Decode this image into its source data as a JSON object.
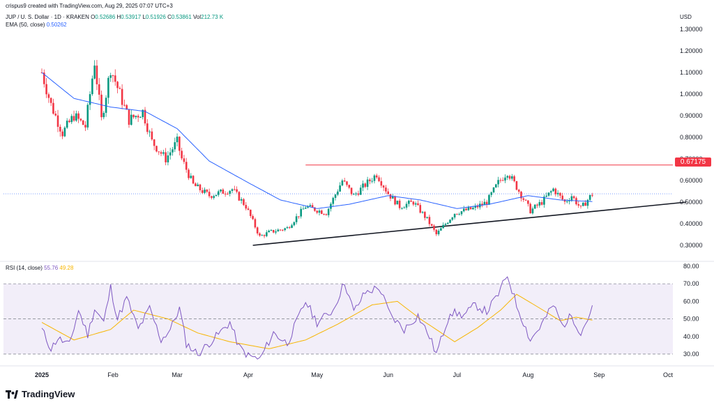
{
  "header": {
    "credit": "crispus9 created with TradingView.com, Aug 29, 2025 07:07 UTC+3",
    "symbol": "JUP / U. S. Dollar · 1D · KRAKEN",
    "ohlc": {
      "o_label": "O",
      "o": "0.52686",
      "h_label": "H",
      "h": "0.53917",
      "l_label": "L",
      "l": "0.51926",
      "c_label": "C",
      "c": "0.53861",
      "vol_label": "Vol",
      "vol": "212.73 K"
    },
    "ema_label": "EMA (50, close)",
    "ema_value": "0.50262",
    "currency": "USD"
  },
  "rsi_header": {
    "label": "RSI (14, close)",
    "value": "55.76",
    "ma": "49.28"
  },
  "logo_text": "TradingView",
  "colors": {
    "up": "#089981",
    "down": "#f23645",
    "ema": "#2962ff",
    "rsi": "#7e57c2",
    "rsi_ma": "#f7b500",
    "resistance": "#f23645",
    "support": "#131722"
  },
  "chart_data": {
    "type": "candlestick",
    "price_axis": {
      "ticks": [
        "1.30000",
        "1.20000",
        "1.10000",
        "1.00000",
        "0.90000",
        "0.80000",
        "0.70000",
        "0.60000",
        "0.50000",
        "0.40000",
        "0.30000"
      ],
      "range": [
        0.26,
        1.35
      ]
    },
    "rsi_axis": {
      "ticks": [
        "80.00",
        "70.00",
        "60.00",
        "50.00",
        "40.00",
        "30.00"
      ],
      "range": [
        25,
        82
      ],
      "bands": [
        30,
        70
      ],
      "mid": 50
    },
    "x_axis": {
      "labels": [
        "2025",
        "Feb",
        "Mar",
        "Apr",
        "May",
        "Jun",
        "Jul",
        "Aug",
        "Sep",
        "Oct"
      ]
    },
    "resistance": {
      "price": 0.67175,
      "label": "0.67175",
      "from": "2025-04-26"
    },
    "support": {
      "from": {
        "date": "2025-04-03",
        "price": 0.3
      },
      "to": {
        "date": "2025-10-09",
        "price": 0.5
      }
    },
    "last_price_line": 0.53861,
    "anchors": [
      {
        "d": "2025-01-01",
        "c": 1.1
      },
      {
        "d": "2025-01-05",
        "c": 0.95
      },
      {
        "d": "2025-01-10",
        "c": 0.82
      },
      {
        "d": "2025-01-15",
        "c": 0.9
      },
      {
        "d": "2025-01-20",
        "c": 0.85
      },
      {
        "d": "2025-01-24",
        "c": 1.15
      },
      {
        "d": "2025-01-27",
        "c": 0.88
      },
      {
        "d": "2025-01-31",
        "c": 1.12
      },
      {
        "d": "2025-02-04",
        "c": 1.0
      },
      {
        "d": "2025-02-08",
        "c": 0.88
      },
      {
        "d": "2025-02-14",
        "c": 0.92
      },
      {
        "d": "2025-02-18",
        "c": 0.78
      },
      {
        "d": "2025-02-24",
        "c": 0.7
      },
      {
        "d": "2025-03-01",
        "c": 0.78
      },
      {
        "d": "2025-03-03",
        "c": 0.7
      },
      {
        "d": "2025-03-08",
        "c": 0.58
      },
      {
        "d": "2025-03-15",
        "c": 0.53
      },
      {
        "d": "2025-03-25",
        "c": 0.56
      },
      {
        "d": "2025-03-31",
        "c": 0.48
      },
      {
        "d": "2025-04-06",
        "c": 0.34
      },
      {
        "d": "2025-04-10",
        "c": 0.36
      },
      {
        "d": "2025-04-18",
        "c": 0.38
      },
      {
        "d": "2025-04-26",
        "c": 0.48
      },
      {
        "d": "2025-05-05",
        "c": 0.45
      },
      {
        "d": "2025-05-12",
        "c": 0.6
      },
      {
        "d": "2025-05-17",
        "c": 0.53
      },
      {
        "d": "2025-05-22",
        "c": 0.58
      },
      {
        "d": "2025-05-27",
        "c": 0.63
      },
      {
        "d": "2025-06-01",
        "c": 0.54
      },
      {
        "d": "2025-06-06",
        "c": 0.48
      },
      {
        "d": "2025-06-12",
        "c": 0.5
      },
      {
        "d": "2025-06-18",
        "c": 0.42
      },
      {
        "d": "2025-06-22",
        "c": 0.35
      },
      {
        "d": "2025-06-30",
        "c": 0.45
      },
      {
        "d": "2025-07-08",
        "c": 0.47
      },
      {
        "d": "2025-07-14",
        "c": 0.5
      },
      {
        "d": "2025-07-19",
        "c": 0.59
      },
      {
        "d": "2025-07-23",
        "c": 0.64
      },
      {
        "d": "2025-07-27",
        "c": 0.57
      },
      {
        "d": "2025-08-02",
        "c": 0.46
      },
      {
        "d": "2025-08-07",
        "c": 0.5
      },
      {
        "d": "2025-08-12",
        "c": 0.56
      },
      {
        "d": "2025-08-17",
        "c": 0.5
      },
      {
        "d": "2025-08-20",
        "c": 0.53
      },
      {
        "d": "2025-08-24",
        "c": 0.47
      },
      {
        "d": "2025-08-29",
        "c": 0.53861
      }
    ],
    "ema_anchors": [
      {
        "d": "2025-01-01",
        "v": 1.1
      },
      {
        "d": "2025-01-15",
        "v": 0.98
      },
      {
        "d": "2025-01-31",
        "v": 0.94
      },
      {
        "d": "2025-02-15",
        "v": 0.92
      },
      {
        "d": "2025-03-01",
        "v": 0.84
      },
      {
        "d": "2025-03-15",
        "v": 0.69
      },
      {
        "d": "2025-04-01",
        "v": 0.59
      },
      {
        "d": "2025-04-15",
        "v": 0.51
      },
      {
        "d": "2025-05-01",
        "v": 0.47
      },
      {
        "d": "2025-05-15",
        "v": 0.49
      },
      {
        "d": "2025-06-01",
        "v": 0.53
      },
      {
        "d": "2025-06-15",
        "v": 0.51
      },
      {
        "d": "2025-07-01",
        "v": 0.47
      },
      {
        "d": "2025-07-15",
        "v": 0.49
      },
      {
        "d": "2025-08-01",
        "v": 0.53
      },
      {
        "d": "2025-08-15",
        "v": 0.51
      },
      {
        "d": "2025-08-29",
        "v": 0.50262
      }
    ],
    "rsi_anchors": [
      {
        "d": "2025-01-01",
        "v": 44
      },
      {
        "d": "2025-01-05",
        "v": 33
      },
      {
        "d": "2025-01-08",
        "v": 39
      },
      {
        "d": "2025-01-13",
        "v": 35
      },
      {
        "d": "2025-01-17",
        "v": 55
      },
      {
        "d": "2025-01-21",
        "v": 41
      },
      {
        "d": "2025-01-24",
        "v": 56
      },
      {
        "d": "2025-01-28",
        "v": 48
      },
      {
        "d": "2025-01-31",
        "v": 68
      },
      {
        "d": "2025-02-03",
        "v": 50
      },
      {
        "d": "2025-02-07",
        "v": 62
      },
      {
        "d": "2025-02-12",
        "v": 44
      },
      {
        "d": "2025-02-17",
        "v": 56
      },
      {
        "d": "2025-02-22",
        "v": 38
      },
      {
        "d": "2025-02-26",
        "v": 44
      },
      {
        "d": "2025-03-02",
        "v": 56
      },
      {
        "d": "2025-03-05",
        "v": 36
      },
      {
        "d": "2025-03-10",
        "v": 30
      },
      {
        "d": "2025-03-18",
        "v": 40
      },
      {
        "d": "2025-03-24",
        "v": 48
      },
      {
        "d": "2025-03-28",
        "v": 34
      },
      {
        "d": "2025-04-01",
        "v": 29
      },
      {
        "d": "2025-04-06",
        "v": 27
      },
      {
        "d": "2025-04-12",
        "v": 42
      },
      {
        "d": "2025-04-18",
        "v": 36
      },
      {
        "d": "2025-04-26",
        "v": 60
      },
      {
        "d": "2025-05-01",
        "v": 48
      },
      {
        "d": "2025-05-08",
        "v": 55
      },
      {
        "d": "2025-05-13",
        "v": 71
      },
      {
        "d": "2025-05-17",
        "v": 54
      },
      {
        "d": "2025-05-22",
        "v": 65
      },
      {
        "d": "2025-05-28",
        "v": 68
      },
      {
        "d": "2025-06-02",
        "v": 52
      },
      {
        "d": "2025-06-08",
        "v": 44
      },
      {
        "d": "2025-06-14",
        "v": 52
      },
      {
        "d": "2025-06-19",
        "v": 40
      },
      {
        "d": "2025-06-22",
        "v": 30
      },
      {
        "d": "2025-06-28",
        "v": 54
      },
      {
        "d": "2025-07-04",
        "v": 52
      },
      {
        "d": "2025-07-09",
        "v": 58
      },
      {
        "d": "2025-07-14",
        "v": 54
      },
      {
        "d": "2025-07-19",
        "v": 64
      },
      {
        "d": "2025-07-23",
        "v": 75
      },
      {
        "d": "2025-07-27",
        "v": 58
      },
      {
        "d": "2025-08-02",
        "v": 38
      },
      {
        "d": "2025-08-06",
        "v": 45
      },
      {
        "d": "2025-08-12",
        "v": 58
      },
      {
        "d": "2025-08-16",
        "v": 46
      },
      {
        "d": "2025-08-20",
        "v": 52
      },
      {
        "d": "2025-08-24",
        "v": 42
      },
      {
        "d": "2025-08-29",
        "v": 55.76
      }
    ],
    "rsi_ma_anchors": [
      {
        "d": "2025-01-01",
        "v": 48
      },
      {
        "d": "2025-01-15",
        "v": 38
      },
      {
        "d": "2025-01-31",
        "v": 44
      },
      {
        "d": "2025-02-10",
        "v": 55
      },
      {
        "d": "2025-02-25",
        "v": 50
      },
      {
        "d": "2025-03-10",
        "v": 42
      },
      {
        "d": "2025-03-24",
        "v": 37
      },
      {
        "d": "2025-04-10",
        "v": 33
      },
      {
        "d": "2025-04-26",
        "v": 38
      },
      {
        "d": "2025-05-10",
        "v": 47
      },
      {
        "d": "2025-05-25",
        "v": 58
      },
      {
        "d": "2025-06-05",
        "v": 60
      },
      {
        "d": "2025-06-15",
        "v": 50
      },
      {
        "d": "2025-06-30",
        "v": 37
      },
      {
        "d": "2025-07-10",
        "v": 45
      },
      {
        "d": "2025-07-20",
        "v": 55
      },
      {
        "d": "2025-07-27",
        "v": 64
      },
      {
        "d": "2025-08-05",
        "v": 57
      },
      {
        "d": "2025-08-15",
        "v": 49
      },
      {
        "d": "2025-08-22",
        "v": 51
      },
      {
        "d": "2025-08-29",
        "v": 49.28
      }
    ]
  }
}
